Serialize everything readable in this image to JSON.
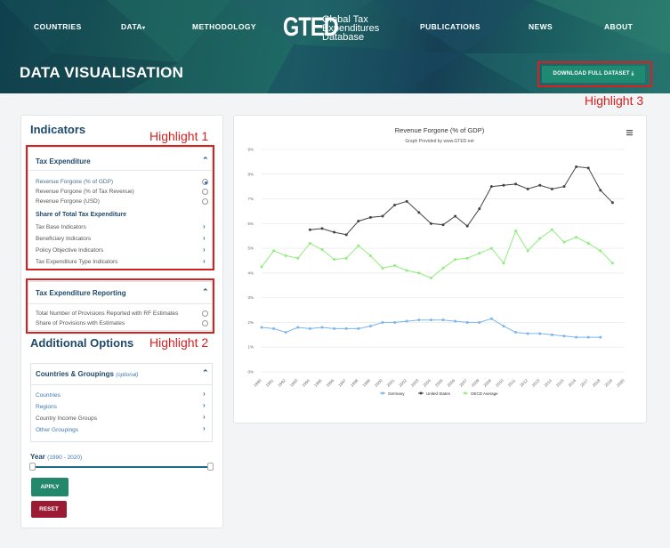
{
  "nav": {
    "countries": "COUNTRIES",
    "data": "DATA",
    "methodology": "METHODOLOGY",
    "publications": "PUBLICATIONS",
    "news": "NEWS",
    "about": "ABOUT"
  },
  "logo": {
    "mark": "GTED",
    "line1": "Global Tax",
    "line2": "Expenditures",
    "line3": "Database"
  },
  "page_title": "DATA VISUALISATION",
  "download_label": "DOWNLOAD FULL DATASET",
  "highlights": {
    "h1": "Highlight 1",
    "h2": "Highlight 2",
    "h3": "Highlight 3"
  },
  "indicators": {
    "title": "Indicators",
    "tax_expenditure": {
      "header": "Tax Expenditure",
      "options": [
        "Revenue Forgone (% of GDP)",
        "Revenue Forgone (% of Tax Revenue)",
        "Revenue Forgone (USD)"
      ],
      "selected": 0,
      "share_title": "Share of Total Tax Expenditure",
      "share_rows": [
        "Tax Base Indicators",
        "Beneficiary Indicators",
        "Policy Objective Indicators",
        "Tax Expenditure Type Indicators"
      ]
    },
    "reporting": {
      "header": "Tax Expenditure Reporting",
      "options": [
        "Total Number of Provisions Reported with RF Estimates",
        "Share of Provisions with Estimates"
      ]
    }
  },
  "additional": {
    "title": "Additional Options",
    "countries_header": "Countries & Groupings",
    "optional_tag": "(optional)",
    "rows": [
      "Countries",
      "Regions",
      "Country Income Groups",
      "Other Groupings"
    ],
    "year_label": "Year",
    "year_range": "(1990 - 2020)",
    "apply": "APPLY",
    "reset": "RESET"
  },
  "chart_data": {
    "type": "line",
    "title": "Revenue Forgone (% of GDP)",
    "subtitle": "Graph Provided by www.GTED.net",
    "menu_icon": "hamburger-icon",
    "x": [
      1990,
      1991,
      1992,
      1993,
      1994,
      1995,
      1996,
      1997,
      1998,
      1999,
      2000,
      2001,
      2002,
      2003,
      2004,
      2005,
      2006,
      2007,
      2008,
      2009,
      2010,
      2011,
      2012,
      2013,
      2014,
      2015,
      2016,
      2017,
      2018,
      2019,
      2020
    ],
    "ylim": [
      0,
      9
    ],
    "yticks": [
      "0%",
      "1%",
      "2%",
      "3%",
      "4%",
      "5%",
      "6%",
      "7%",
      "8%",
      "9%"
    ],
    "grid": true,
    "legend_position": "bottom",
    "series": [
      {
        "name": "Germany",
        "color": "#7cb5ec",
        "values": [
          1.8,
          1.75,
          1.6,
          1.8,
          1.75,
          1.8,
          1.75,
          1.75,
          1.75,
          1.85,
          2.0,
          2.0,
          2.05,
          2.1,
          2.1,
          2.1,
          2.05,
          2.0,
          2.0,
          2.15,
          1.85,
          1.6,
          1.55,
          1.55,
          1.5,
          1.45,
          1.4,
          1.4,
          1.4,
          null,
          null
        ]
      },
      {
        "name": "United States",
        "color": "#434348",
        "values": [
          null,
          null,
          null,
          null,
          5.75,
          5.8,
          5.65,
          5.55,
          6.1,
          6.25,
          6.3,
          6.75,
          6.9,
          6.45,
          6.0,
          5.95,
          6.3,
          5.9,
          6.6,
          7.5,
          7.55,
          7.6,
          7.4,
          7.55,
          7.4,
          7.5,
          8.3,
          8.25,
          7.35,
          6.85,
          null
        ]
      },
      {
        "name": "OECD Average",
        "color": "#90ed7d",
        "values": [
          4.25,
          4.9,
          4.7,
          4.6,
          5.2,
          4.95,
          4.55,
          4.6,
          5.1,
          4.7,
          4.2,
          4.3,
          4.1,
          4.0,
          3.8,
          4.2,
          4.55,
          4.6,
          4.8,
          5.0,
          4.4,
          5.7,
          4.9,
          5.4,
          5.75,
          5.25,
          5.45,
          5.2,
          4.9,
          4.4,
          null
        ]
      }
    ]
  },
  "colors": {
    "accent": "#1e8a72",
    "reset": "#9a1b33",
    "highlight": "#d62121",
    "heading": "#1e4a6a"
  }
}
